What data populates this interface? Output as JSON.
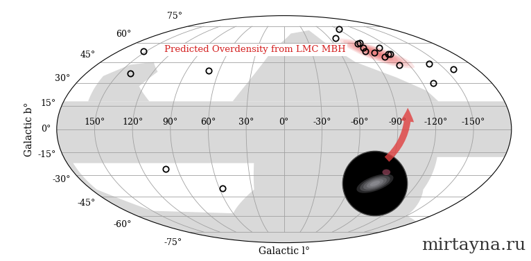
{
  "chart_data": {
    "type": "scatter",
    "x_label": "Galactic l°",
    "y_label": "Galactic b°",
    "x": [
      -92,
      -68,
      -93,
      -88,
      -90,
      -88,
      -108,
      -97,
      -104,
      -110,
      -112,
      -111,
      -141,
      -158,
      -129,
      153,
      140,
      70,
      100,
      57
    ],
    "y": [
      72,
      64,
      60,
      59,
      56,
      53,
      56,
      52,
      49,
      51,
      51,
      43,
      44,
      40,
      30,
      53,
      37,
      39,
      -26,
      -39
    ],
    "marker": "o",
    "color": "#000000",
    "xlim": [
      180,
      -180
    ],
    "ylim": [
      -90,
      90
    ],
    "xticks": [
      {
        "value": 150,
        "label": "150°"
      },
      {
        "value": 120,
        "label": "120°"
      },
      {
        "value": 90,
        "label": "90°"
      },
      {
        "value": 60,
        "label": "60°"
      },
      {
        "value": 30,
        "label": "30°"
      },
      {
        "value": 0,
        "label": "0°"
      },
      {
        "value": -30,
        "label": "-30°"
      },
      {
        "value": -60,
        "label": "-60°"
      },
      {
        "value": -90,
        "label": "-90°"
      },
      {
        "value": -120,
        "label": "-120°"
      },
      {
        "value": -150,
        "label": "-150°"
      }
    ],
    "yticks": [
      {
        "value": 75,
        "label": "75°"
      },
      {
        "value": 60,
        "label": "60°"
      },
      {
        "value": 45,
        "label": "45°"
      },
      {
        "value": 30,
        "label": "30°"
      },
      {
        "value": 15,
        "label": "15°"
      },
      {
        "value": 0,
        "label": "0°"
      },
      {
        "value": -15,
        "label": "-15°"
      },
      {
        "value": -30,
        "label": "-30°"
      },
      {
        "value": -45,
        "label": "-45°"
      },
      {
        "value": -60,
        "label": "-60°"
      },
      {
        "value": -75,
        "label": "-75°"
      }
    ],
    "grid": true,
    "annotation": {
      "text": "Predicted Overdensity from LMC MBH",
      "l": -97,
      "b": 52
    },
    "watermark": "mirtayna.ru"
  }
}
